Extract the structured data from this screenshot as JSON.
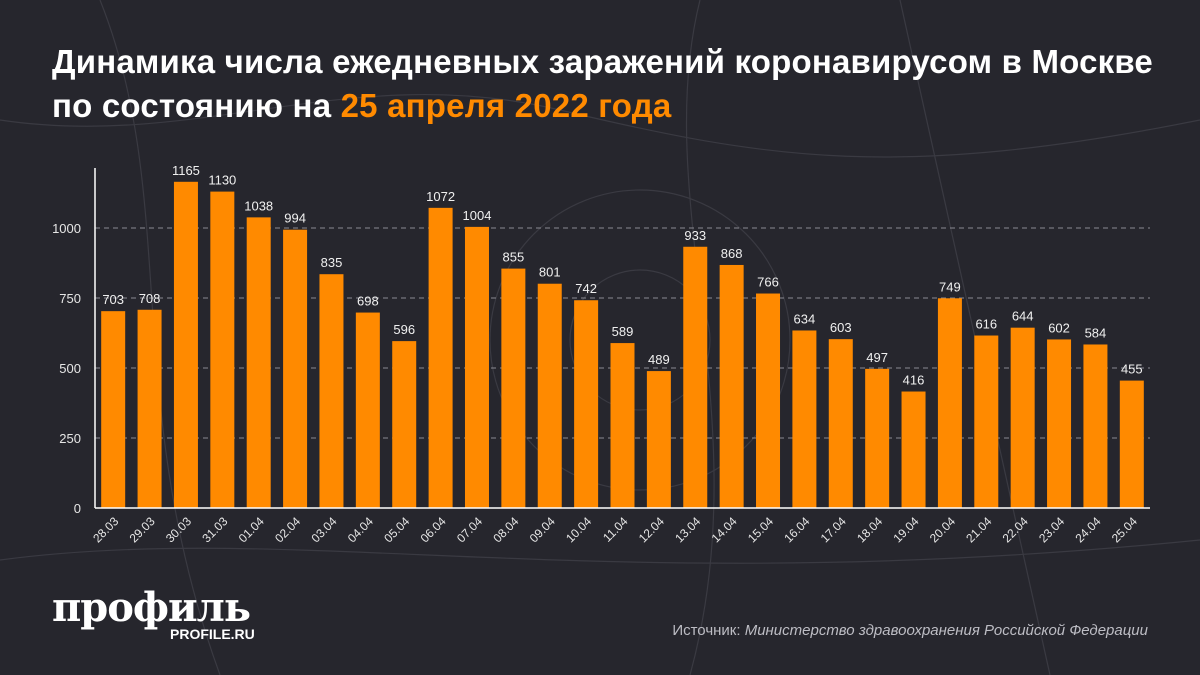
{
  "title": {
    "main": "Динамика числа ежедневных заражений коронавирусом в Москве по состоянию на",
    "highlight": "25 апреля 2022 года"
  },
  "chart_data": {
    "type": "bar",
    "title": "Динамика числа ежедневных заражений коронавирусом в Москве по состоянию на 25 апреля 2022 года",
    "xlabel": "",
    "ylabel": "",
    "categories": [
      "28.03",
      "29.03",
      "30.03",
      "31.03",
      "01.04",
      "02.04",
      "03.04",
      "04.04",
      "05.04",
      "06.04",
      "07.04",
      "08.04",
      "09.04",
      "10.04",
      "11.04",
      "12.04",
      "13.04",
      "14.04",
      "15.04",
      "16.04",
      "17.04",
      "18.04",
      "19.04",
      "20.04",
      "21.04",
      "22.04",
      "23.04",
      "24.04",
      "25.04"
    ],
    "values": [
      703,
      708,
      1165,
      1130,
      1038,
      994,
      835,
      698,
      596,
      1072,
      1004,
      855,
      801,
      742,
      589,
      489,
      933,
      868,
      766,
      634,
      603,
      497,
      416,
      749,
      616,
      644,
      602,
      584,
      455
    ],
    "yticks": [
      0,
      250,
      500,
      750,
      1000
    ],
    "ylim": [
      0,
      1230
    ],
    "grid": "horizontal dashed",
    "bar_color": "#ff8a00",
    "background": "#26262d"
  },
  "logo": {
    "word": "профиль",
    "url": "PROFILE.RU"
  },
  "source": {
    "label": "Источник:",
    "text": "Министерство здравоохранения Российской Федерации"
  }
}
